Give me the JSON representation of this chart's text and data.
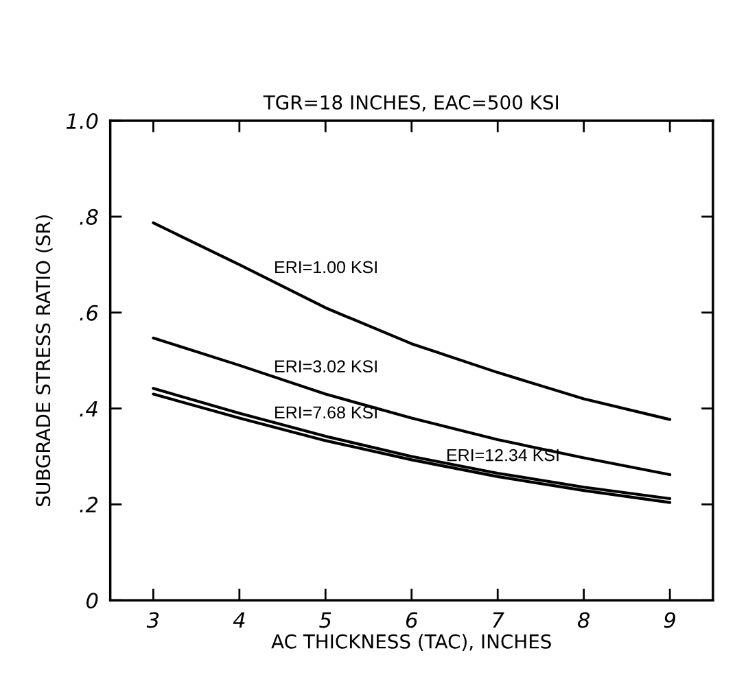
{
  "chart_data": {
    "type": "line",
    "title": "TGR=18 INCHES, EAC=500 KSI",
    "xlabel": "AC THICKNESS (TAC), INCHES",
    "ylabel": "SUBGRADE STRESS RATIO (SR)",
    "x": [
      3,
      4,
      5,
      6,
      7,
      8,
      9
    ],
    "series": [
      {
        "color": "#000000",
        "values": [
          0.787,
          0.7,
          0.61,
          0.535,
          0.475,
          0.42,
          0.377
        ]
      },
      {
        "color": "#000000",
        "values": [
          0.547,
          0.49,
          0.43,
          0.38,
          0.335,
          0.297,
          0.262
        ]
      },
      {
        "color": "#000000",
        "values": [
          0.442,
          0.39,
          0.342,
          0.3,
          0.265,
          0.236,
          0.212
        ]
      },
      {
        "color": "#000000",
        "values": [
          0.43,
          0.38,
          0.333,
          0.293,
          0.258,
          0.229,
          0.204
        ]
      }
    ],
    "annotations": [
      "ERI=1.00 KSI",
      "ERI=3.02 KSI",
      "ERI=7.68 KSI",
      "ERI=12.34 KSI"
    ],
    "xlim": [
      2.5,
      9.5
    ],
    "xticks": [
      3,
      4,
      5,
      6,
      7,
      8,
      9
    ],
    "ylim": [
      0,
      1
    ],
    "yticks": [
      0,
      {
        "value": 0.2,
        "label": ".2"
      },
      {
        "value": 0.4,
        "label": ".4"
      },
      {
        "value": 0.6,
        "label": ".6"
      },
      {
        "value": 0.8,
        "label": ".8"
      },
      {
        "value": 1,
        "label": "1.0"
      }
    ],
    "grid": false,
    "legend": false,
    "marker": "none",
    "line_style": "solid"
  }
}
